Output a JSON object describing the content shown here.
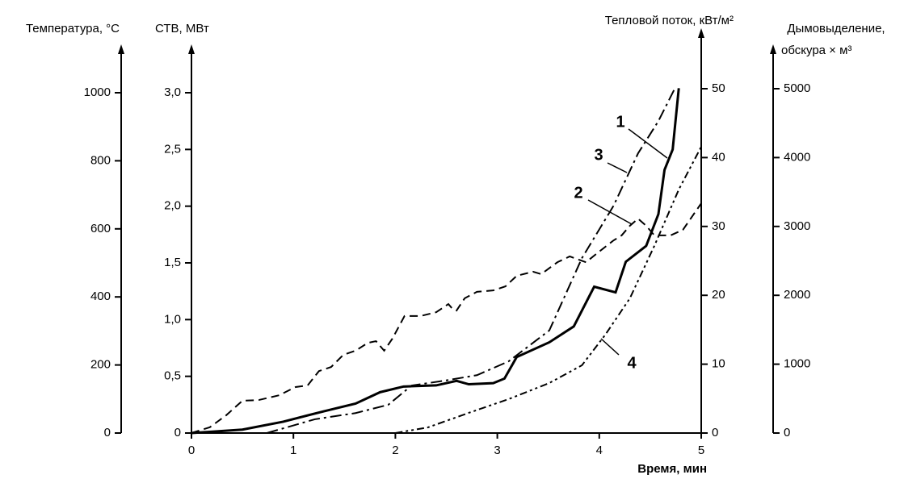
{
  "chart_data": {
    "type": "line",
    "xlabel": "Время, мин",
    "xlim": [
      0,
      5
    ],
    "xticks": [
      0,
      1,
      2,
      3,
      4,
      5
    ],
    "ylabel": "СТВ, МВт",
    "ylim": [
      0,
      3
    ],
    "yticks": [
      0,
      {
        "value": 0.5,
        "label": "0,5"
      },
      {
        "value": 1,
        "label": "1,0"
      },
      {
        "value": 1.5,
        "label": "1,5"
      },
      {
        "value": 2,
        "label": "2,0"
      },
      {
        "value": 2.5,
        "label": "2,5"
      },
      {
        "value": 3,
        "label": "3,0"
      }
    ],
    "y2label": "Температура, °С",
    "y2lim": [
      0,
      1000
    ],
    "y2ticks": [
      0,
      200,
      400,
      600,
      800,
      1000
    ],
    "y3label": "Тепловой поток, кВт/м²",
    "y3lim": [
      0,
      50
    ],
    "y3ticks": [
      0,
      10,
      20,
      30,
      40,
      50
    ],
    "y4label": [
      "Дымовыделение,",
      "обскура × м³"
    ],
    "y4lim": [
      0,
      5000
    ],
    "y4ticks": [
      0,
      1000,
      2000,
      3000,
      4000,
      5000
    ],
    "series": [
      {
        "name": "1",
        "color": "#000000",
        "axis": "y",
        "x": [
          0,
          0.5,
          0.9,
          1.29,
          1.61,
          1.85,
          2.08,
          2.4,
          2.6,
          2.72,
          2.96,
          3.07,
          3.19,
          3.51,
          3.75,
          3.95,
          4.16,
          4.26,
          4.46,
          4.58,
          4.64,
          4.72,
          4.78
        ],
        "values": [
          0,
          0.03,
          0.1,
          0.19,
          0.26,
          0.36,
          0.41,
          0.42,
          0.46,
          0.43,
          0.44,
          0.48,
          0.67,
          0.8,
          0.94,
          1.29,
          1.24,
          1.51,
          1.65,
          1.93,
          2.32,
          2.5,
          3.04
        ]
      },
      {
        "name": "2",
        "color": "#000000",
        "axis": "y2",
        "x": [
          0,
          0.18,
          0.34,
          0.5,
          0.66,
          0.86,
          1.02,
          1.14,
          1.25,
          1.37,
          1.49,
          1.61,
          1.73,
          1.81,
          1.89,
          1.97,
          2.09,
          2.25,
          2.4,
          2.52,
          2.56,
          2.6,
          2.68,
          2.8,
          2.96,
          3.08,
          3.19,
          3.35,
          3.43,
          3.59,
          3.71,
          3.87,
          3.99,
          4.14,
          4.22,
          4.3,
          4.38,
          4.46,
          4.54,
          4.7,
          4.82,
          5
        ],
        "values": [
          0,
          17,
          52,
          95,
          97,
          111,
          135,
          140,
          182,
          194,
          230,
          242,
          265,
          270,
          242,
          277,
          344,
          344,
          355,
          379,
          365,
          360,
          396,
          415,
          419,
          431,
          462,
          474,
          467,
          502,
          519,
          502,
          531,
          566,
          581,
          609,
          630,
          609,
          581,
          581,
          597,
          675
        ]
      },
      {
        "name": "3",
        "color": "#000000",
        "axis": "y3",
        "x": [
          0.74,
          1.21,
          1.61,
          1.93,
          2.16,
          2.48,
          2.8,
          3.11,
          3.51,
          3.83,
          4.14,
          4.38,
          4.58,
          4.74
        ],
        "values": [
          0,
          2,
          2.9,
          4.1,
          6.9,
          7.6,
          8.4,
          10.4,
          14.9,
          25.4,
          33,
          40.6,
          45.3,
          50
        ]
      },
      {
        "name": "4",
        "color": "#000000",
        "axis": "y4",
        "x": [
          2,
          2.32,
          2.72,
          3.11,
          3.51,
          3.83,
          4.06,
          4.3,
          4.54,
          4.78,
          5
        ],
        "values": [
          0,
          82,
          293,
          492,
          726,
          984,
          1429,
          1956,
          2717,
          3536,
          4157
        ]
      }
    ]
  }
}
